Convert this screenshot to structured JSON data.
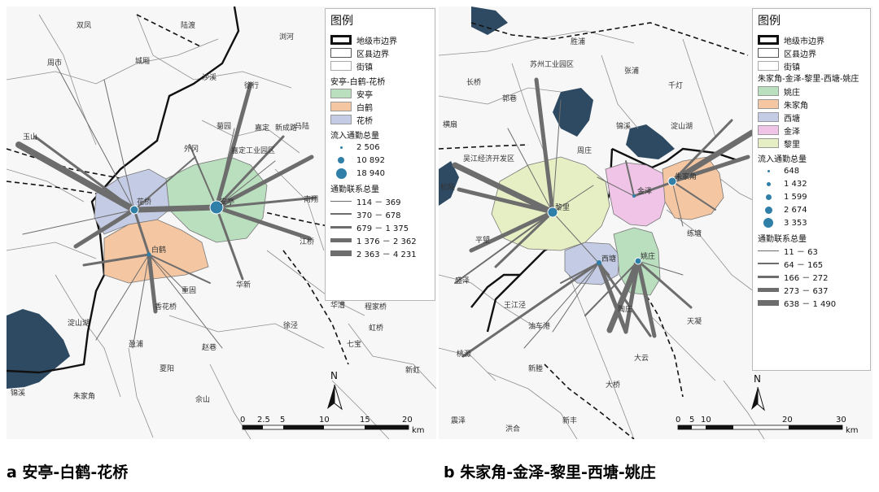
{
  "panel_a": {
    "caption": "a 安亭-白鹤-花桥",
    "legend": {
      "title": "图例",
      "boundaries": [
        "地级市边界",
        "区县边界",
        "街镇"
      ],
      "group_title": "安亭-白鹤-花桥",
      "areas": [
        {
          "label": "安亭",
          "color": "#b9dfbe"
        },
        {
          "label": "白鹤",
          "color": "#f4c6a1"
        },
        {
          "label": "花桥",
          "color": "#c4cbe4"
        }
      ],
      "inflow_title": "流入通勤总量",
      "inflow": [
        "2 506",
        "10 892",
        "18 940"
      ],
      "flow_title": "通勤联系总量",
      "flows": [
        "114 － 369",
        "370 － 678",
        "679 － 1 375",
        "1 376 － 2 362",
        "2 363 － 4 231"
      ]
    },
    "places": [
      "双凤",
      "陆渡",
      "浏河",
      "周市",
      "城厢",
      "沙溪",
      "徐行",
      "马陆",
      "嘉定工业园区",
      "新成路",
      "南翔",
      "江桥",
      "菊园",
      "嘉定",
      "外冈",
      "玉山",
      "花桥",
      "安亭",
      "白鹤",
      "华新",
      "重固",
      "赵巷",
      "香花桥",
      "夏阳",
      "盈浦",
      "淀山湖",
      "徐泾",
      "锦溪",
      "朱家角",
      "佘山",
      "程家桥",
      "虹桥",
      "七宝",
      "华漕",
      "新虹"
    ],
    "scalebar": {
      "ticks": [
        "0",
        "2.5",
        "5",
        "10",
        "15",
        "20"
      ],
      "unit": "km"
    },
    "north": "N"
  },
  "panel_b": {
    "caption": "b 朱家角-金泽-黎里-西塘-姚庄",
    "legend": {
      "title": "图例",
      "boundaries": [
        "地级市边界",
        "区县边界",
        "街镇"
      ],
      "group_title": "朱家角-金泽-黎里-西塘-姚庄",
      "areas": [
        {
          "label": "姚庄",
          "color": "#b9dfbe"
        },
        {
          "label": "朱家角",
          "color": "#f4c6a1"
        },
        {
          "label": "西塘",
          "color": "#c4cbe4"
        },
        {
          "label": "金泽",
          "color": "#efc4e6"
        },
        {
          "label": "黎里",
          "color": "#e6efc4"
        }
      ],
      "inflow_title": "流入通勤总量",
      "inflow": [
        "648",
        "1 432",
        "1 599",
        "2 674",
        "3 353"
      ],
      "flow_title": "通勤联系总量",
      "flows": [
        "11 － 63",
        "64 － 165",
        "166 － 272",
        "273 － 637",
        "638 － 1 490"
      ]
    },
    "places": [
      "苏州工业园区",
      "胜浦",
      "张浦",
      "长桥",
      "郭巷",
      "吴江经济开发区",
      "松陵",
      "黎里",
      "金泽",
      "朱家角",
      "西塘",
      "姚庄",
      "锦溪",
      "周庄",
      "练塘",
      "千灯",
      "淀山湖",
      "王江泾",
      "油车港",
      "大云",
      "陶庄",
      "天凝",
      "新塍",
      "洪合",
      "新丰",
      "大桥",
      "平望",
      "盛泽",
      "桃源",
      "横扇",
      "震泽"
    ],
    "scalebar": {
      "ticks": [
        "0",
        "5",
        "10",
        "20",
        "30"
      ],
      "unit": "km"
    },
    "north": "N"
  }
}
